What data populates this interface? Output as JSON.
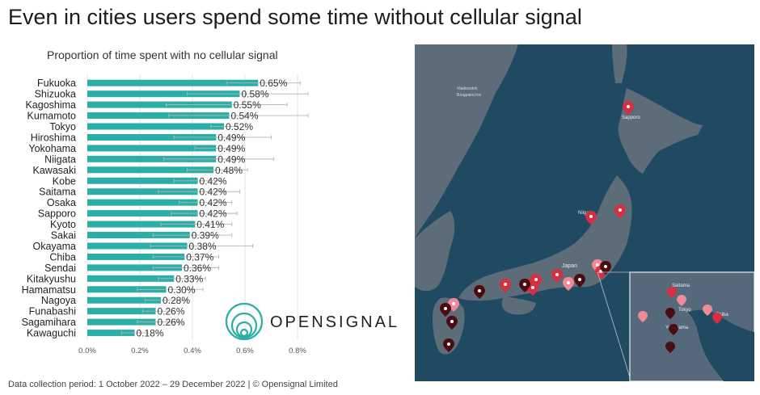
{
  "page": {
    "title": "Even in cities users spend some time without cellular signal",
    "footer": "Data collection period: 1 October 2022 – 29 December 2022 |  © Opensignal Limited"
  },
  "logo": {
    "text": "OPENSIGNAL",
    "color": "#2aaea6"
  },
  "map": {
    "labels": {
      "vladivostok": "Vladivostok",
      "vladivostok_ru": "Владивосток",
      "sapporo": "Sapporo",
      "niigata": "Niigata",
      "japan": "Japan",
      "tokyo": "Tokyo",
      "saitama": "Saitama",
      "yokohama": "Yokohama",
      "chiba": "Chiba"
    },
    "colors": {
      "sea": "#1f4a61",
      "land": "#5c6d79",
      "pin_red": "#d92d40",
      "pin_pink": "#f08a98",
      "pin_dark": "#4a0d12"
    }
  },
  "chart_data": {
    "type": "bar",
    "orientation": "horizontal",
    "title": "Proportion of time spent with no cellular signal",
    "categories": [
      "Fukuoka",
      "Shizuoka",
      "Kagoshima",
      "Kumamoto",
      "Tokyo",
      "Hiroshima",
      "Yokohama",
      "Niigata",
      "Kawasaki",
      "Kobe",
      "Saitama",
      "Osaka",
      "Sapporo",
      "Kyoto",
      "Sakai",
      "Okayama",
      "Chiba",
      "Sendai",
      "Kitakyushu",
      "Hamamatsu",
      "Nagoya",
      "Funabashi",
      "Sagamihara",
      "Kawaguchi"
    ],
    "values": [
      0.65,
      0.58,
      0.55,
      0.54,
      0.52,
      0.49,
      0.49,
      0.49,
      0.48,
      0.42,
      0.42,
      0.42,
      0.42,
      0.41,
      0.39,
      0.38,
      0.37,
      0.36,
      0.33,
      0.3,
      0.28,
      0.26,
      0.26,
      0.18
    ],
    "value_labels": [
      "0.65%",
      "0.58%",
      "0.55%",
      "0.54%",
      "0.52%",
      "0.49%",
      "0.49%",
      "0.49%",
      "0.48%",
      "0.42%",
      "0.42%",
      "0.42%",
      "0.42%",
      "0.41%",
      "0.39%",
      "0.38%",
      "0.37%",
      "0.36%",
      "0.33%",
      "0.30%",
      "0.28%",
      "0.26%",
      "0.26%",
      "0.18%"
    ],
    "error_low": [
      0.53,
      0.38,
      0.3,
      0.31,
      0.47,
      0.33,
      0.41,
      0.29,
      0.38,
      0.33,
      0.27,
      0.35,
      0.32,
      0.28,
      0.25,
      0.24,
      0.25,
      0.25,
      0.27,
      0.19,
      0.22,
      0.21,
      0.19,
      0.13
    ],
    "error_high": [
      0.81,
      0.84,
      0.76,
      0.84,
      0.57,
      0.7,
      0.58,
      0.71,
      0.61,
      0.51,
      0.58,
      0.55,
      0.57,
      0.55,
      0.55,
      0.63,
      0.5,
      0.5,
      0.45,
      0.44,
      0.38,
      0.32,
      0.35,
      0.23
    ],
    "xlim": [
      0,
      0.8
    ],
    "xticks": [
      0,
      0.2,
      0.4,
      0.6,
      0.8
    ],
    "xtick_labels": [
      "0.0%",
      "0.2%",
      "0.4%",
      "0.6%",
      "0.8%"
    ],
    "bar_color": "#2aaea6",
    "error_color": "#b5b5b5",
    "grid_color": "#e3e3e3",
    "grid": true,
    "legend": "none"
  }
}
